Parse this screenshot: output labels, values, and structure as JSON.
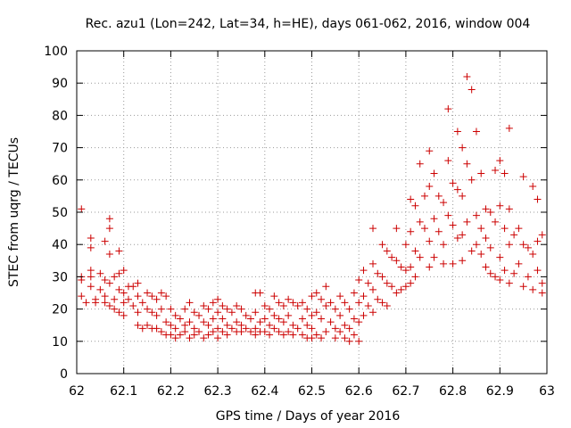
{
  "chart_data": {
    "type": "scatter",
    "title": "Rec. azu1 (Lon=242, Lat=34, h=HE), days 061-062, 2016, window 004",
    "xlabel": "GPS time / Days of year 2016",
    "ylabel": "STEC from uqrg / TECUs",
    "xlim": [
      62.0,
      63.0
    ],
    "ylim": [
      0,
      100
    ],
    "xticks": [
      62,
      62.1,
      62.2,
      62.3,
      62.4,
      62.5,
      62.6,
      62.7,
      62.8,
      62.9,
      63
    ],
    "xtick_labels": [
      "62",
      "62.1",
      "62.2",
      "62.3",
      "62.4",
      "62.5",
      "62.6",
      "62.7",
      "62.8",
      "62.9",
      "63"
    ],
    "yticks": [
      0,
      10,
      20,
      30,
      40,
      50,
      60,
      70,
      80,
      90,
      100
    ],
    "ytick_labels": [
      "0",
      "10",
      "20",
      "30",
      "40",
      "50",
      "60",
      "70",
      "80",
      "90",
      "100"
    ],
    "grid": true,
    "marker": "+",
    "color": "#cc0000",
    "points": [
      [
        62.01,
        51
      ],
      [
        62.01,
        30
      ],
      [
        62.01,
        29
      ],
      [
        62.01,
        24
      ],
      [
        62.02,
        22
      ],
      [
        62.03,
        42
      ],
      [
        62.03,
        39
      ],
      [
        62.03,
        32
      ],
      [
        62.03,
        30
      ],
      [
        62.03,
        27
      ],
      [
        62.04,
        23
      ],
      [
        62.04,
        22
      ],
      [
        62.05,
        31
      ],
      [
        62.05,
        26
      ],
      [
        62.06,
        41
      ],
      [
        62.06,
        29
      ],
      [
        62.06,
        24
      ],
      [
        62.06,
        22
      ],
      [
        62.07,
        48
      ],
      [
        62.07,
        45
      ],
      [
        62.07,
        37
      ],
      [
        62.07,
        28
      ],
      [
        62.07,
        21
      ],
      [
        62.08,
        30
      ],
      [
        62.08,
        23
      ],
      [
        62.08,
        20
      ],
      [
        62.09,
        38
      ],
      [
        62.09,
        31
      ],
      [
        62.09,
        26
      ],
      [
        62.09,
        19
      ],
      [
        62.1,
        32
      ],
      [
        62.1,
        25
      ],
      [
        62.1,
        22
      ],
      [
        62.1,
        18
      ],
      [
        62.11,
        27
      ],
      [
        62.11,
        23
      ],
      [
        62.12,
        27
      ],
      [
        62.12,
        21
      ],
      [
        62.13,
        28
      ],
      [
        62.13,
        24
      ],
      [
        62.13,
        19
      ],
      [
        62.13,
        15
      ],
      [
        62.14,
        22
      ],
      [
        62.14,
        14
      ],
      [
        62.15,
        25
      ],
      [
        62.15,
        20
      ],
      [
        62.15,
        15
      ],
      [
        62.16,
        24
      ],
      [
        62.16,
        19
      ],
      [
        62.16,
        14
      ],
      [
        62.17,
        23
      ],
      [
        62.17,
        18
      ],
      [
        62.17,
        14
      ],
      [
        62.18,
        25
      ],
      [
        62.18,
        20
      ],
      [
        62.18,
        13
      ],
      [
        62.19,
        24
      ],
      [
        62.19,
        16
      ],
      [
        62.19,
        12
      ],
      [
        62.2,
        20
      ],
      [
        62.2,
        15
      ],
      [
        62.2,
        12
      ],
      [
        62.21,
        18
      ],
      [
        62.21,
        14
      ],
      [
        62.21,
        11
      ],
      [
        62.22,
        17
      ],
      [
        62.22,
        12
      ],
      [
        62.23,
        20
      ],
      [
        62.23,
        15
      ],
      [
        62.23,
        13
      ],
      [
        62.24,
        22
      ],
      [
        62.24,
        16
      ],
      [
        62.24,
        11
      ],
      [
        62.25,
        19
      ],
      [
        62.25,
        14
      ],
      [
        62.25,
        12
      ],
      [
        62.26,
        18
      ],
      [
        62.26,
        13
      ],
      [
        62.27,
        21
      ],
      [
        62.27,
        16
      ],
      [
        62.27,
        11
      ],
      [
        62.28,
        20
      ],
      [
        62.28,
        15
      ],
      [
        62.28,
        12
      ],
      [
        62.29,
        22
      ],
      [
        62.29,
        17
      ],
      [
        62.29,
        13
      ],
      [
        62.3,
        23
      ],
      [
        62.3,
        19
      ],
      [
        62.3,
        14
      ],
      [
        62.3,
        11
      ],
      [
        62.31,
        21
      ],
      [
        62.31,
        17
      ],
      [
        62.31,
        13
      ],
      [
        62.32,
        20
      ],
      [
        62.32,
        15
      ],
      [
        62.32,
        12
      ],
      [
        62.33,
        19
      ],
      [
        62.33,
        14
      ],
      [
        62.34,
        21
      ],
      [
        62.34,
        16
      ],
      [
        62.34,
        13
      ],
      [
        62.35,
        20
      ],
      [
        62.35,
        15
      ],
      [
        62.35,
        13
      ],
      [
        62.36,
        18
      ],
      [
        62.36,
        14
      ],
      [
        62.37,
        17
      ],
      [
        62.37,
        13
      ],
      [
        62.38,
        25
      ],
      [
        62.38,
        19
      ],
      [
        62.38,
        14
      ],
      [
        62.38,
        12
      ],
      [
        62.39,
        25
      ],
      [
        62.39,
        16
      ],
      [
        62.39,
        13
      ],
      [
        62.4,
        21
      ],
      [
        62.4,
        17
      ],
      [
        62.4,
        13
      ],
      [
        62.41,
        20
      ],
      [
        62.41,
        15
      ],
      [
        62.41,
        12
      ],
      [
        62.42,
        24
      ],
      [
        62.42,
        18
      ],
      [
        62.42,
        14
      ],
      [
        62.43,
        22
      ],
      [
        62.43,
        17
      ],
      [
        62.43,
        13
      ],
      [
        62.44,
        21
      ],
      [
        62.44,
        16
      ],
      [
        62.44,
        12
      ],
      [
        62.45,
        23
      ],
      [
        62.45,
        18
      ],
      [
        62.45,
        13
      ],
      [
        62.46,
        22
      ],
      [
        62.46,
        15
      ],
      [
        62.46,
        12
      ],
      [
        62.47,
        21
      ],
      [
        62.47,
        14
      ],
      [
        62.48,
        22
      ],
      [
        62.48,
        17
      ],
      [
        62.48,
        12
      ],
      [
        62.49,
        20
      ],
      [
        62.49,
        15
      ],
      [
        62.49,
        11
      ],
      [
        62.5,
        24
      ],
      [
        62.5,
        18
      ],
      [
        62.5,
        14
      ],
      [
        62.5,
        11
      ],
      [
        62.51,
        25
      ],
      [
        62.51,
        19
      ],
      [
        62.51,
        12
      ],
      [
        62.52,
        23
      ],
      [
        62.52,
        17
      ],
      [
        62.52,
        11
      ],
      [
        62.53,
        27
      ],
      [
        62.53,
        21
      ],
      [
        62.53,
        13
      ],
      [
        62.54,
        22
      ],
      [
        62.54,
        16
      ],
      [
        62.55,
        20
      ],
      [
        62.55,
        14
      ],
      [
        62.55,
        11
      ],
      [
        62.56,
        24
      ],
      [
        62.56,
        18
      ],
      [
        62.56,
        13
      ],
      [
        62.57,
        22
      ],
      [
        62.57,
        15
      ],
      [
        62.57,
        11
      ],
      [
        62.58,
        20
      ],
      [
        62.58,
        14
      ],
      [
        62.58,
        10
      ],
      [
        62.59,
        25
      ],
      [
        62.59,
        17
      ],
      [
        62.59,
        12
      ],
      [
        62.6,
        29
      ],
      [
        62.6,
        22
      ],
      [
        62.6,
        16
      ],
      [
        62.6,
        10
      ],
      [
        62.61,
        32
      ],
      [
        62.61,
        24
      ],
      [
        62.61,
        18
      ],
      [
        62.62,
        28
      ],
      [
        62.62,
        21
      ],
      [
        62.63,
        45
      ],
      [
        62.63,
        34
      ],
      [
        62.63,
        26
      ],
      [
        62.63,
        19
      ],
      [
        62.64,
        31
      ],
      [
        62.64,
        23
      ],
      [
        62.65,
        40
      ],
      [
        62.65,
        30
      ],
      [
        62.65,
        22
      ],
      [
        62.66,
        38
      ],
      [
        62.66,
        28
      ],
      [
        62.66,
        21
      ],
      [
        62.67,
        36
      ],
      [
        62.67,
        27
      ],
      [
        62.68,
        45
      ],
      [
        62.68,
        35
      ],
      [
        62.68,
        25
      ],
      [
        62.69,
        33
      ],
      [
        62.69,
        26
      ],
      [
        62.7,
        40
      ],
      [
        62.7,
        32
      ],
      [
        62.7,
        27
      ],
      [
        62.71,
        54
      ],
      [
        62.71,
        44
      ],
      [
        62.71,
        33
      ],
      [
        62.71,
        28
      ],
      [
        62.72,
        52
      ],
      [
        62.72,
        38
      ],
      [
        62.72,
        30
      ],
      [
        62.73,
        65
      ],
      [
        62.73,
        47
      ],
      [
        62.73,
        36
      ],
      [
        62.74,
        55
      ],
      [
        62.74,
        45
      ],
      [
        62.75,
        69
      ],
      [
        62.75,
        58
      ],
      [
        62.75,
        41
      ],
      [
        62.75,
        33
      ],
      [
        62.76,
        62
      ],
      [
        62.76,
        48
      ],
      [
        62.76,
        36
      ],
      [
        62.77,
        55
      ],
      [
        62.77,
        44
      ],
      [
        62.78,
        53
      ],
      [
        62.78,
        40
      ],
      [
        62.78,
        34
      ],
      [
        62.79,
        82
      ],
      [
        62.79,
        66
      ],
      [
        62.79,
        49
      ],
      [
        62.8,
        59
      ],
      [
        62.8,
        46
      ],
      [
        62.8,
        34
      ],
      [
        62.81,
        75
      ],
      [
        62.81,
        57
      ],
      [
        62.81,
        42
      ],
      [
        62.82,
        70
      ],
      [
        62.82,
        55
      ],
      [
        62.82,
        43
      ],
      [
        62.82,
        35
      ],
      [
        62.83,
        92
      ],
      [
        62.83,
        65
      ],
      [
        62.83,
        47
      ],
      [
        62.84,
        88
      ],
      [
        62.84,
        60
      ],
      [
        62.84,
        38
      ],
      [
        62.85,
        75
      ],
      [
        62.85,
        49
      ],
      [
        62.85,
        40
      ],
      [
        62.86,
        62
      ],
      [
        62.86,
        45
      ],
      [
        62.86,
        37
      ],
      [
        62.87,
        51
      ],
      [
        62.87,
        42
      ],
      [
        62.87,
        33
      ],
      [
        62.88,
        50
      ],
      [
        62.88,
        39
      ],
      [
        62.88,
        31
      ],
      [
        62.89,
        63
      ],
      [
        62.89,
        47
      ],
      [
        62.89,
        30
      ],
      [
        62.9,
        66
      ],
      [
        62.9,
        52
      ],
      [
        62.9,
        36
      ],
      [
        62.9,
        29
      ],
      [
        62.91,
        62
      ],
      [
        62.91,
        45
      ],
      [
        62.91,
        32
      ],
      [
        62.92,
        76
      ],
      [
        62.92,
        51
      ],
      [
        62.92,
        40
      ],
      [
        62.92,
        28
      ],
      [
        62.93,
        43
      ],
      [
        62.93,
        31
      ],
      [
        62.94,
        45
      ],
      [
        62.94,
        34
      ],
      [
        62.95,
        61
      ],
      [
        62.95,
        40
      ],
      [
        62.95,
        27
      ],
      [
        62.96,
        39
      ],
      [
        62.96,
        30
      ],
      [
        62.97,
        58
      ],
      [
        62.97,
        37
      ],
      [
        62.97,
        26
      ],
      [
        62.98,
        54
      ],
      [
        62.98,
        41
      ],
      [
        62.98,
        32
      ],
      [
        62.99,
        43
      ],
      [
        62.99,
        28
      ],
      [
        62.99,
        25
      ]
    ]
  }
}
